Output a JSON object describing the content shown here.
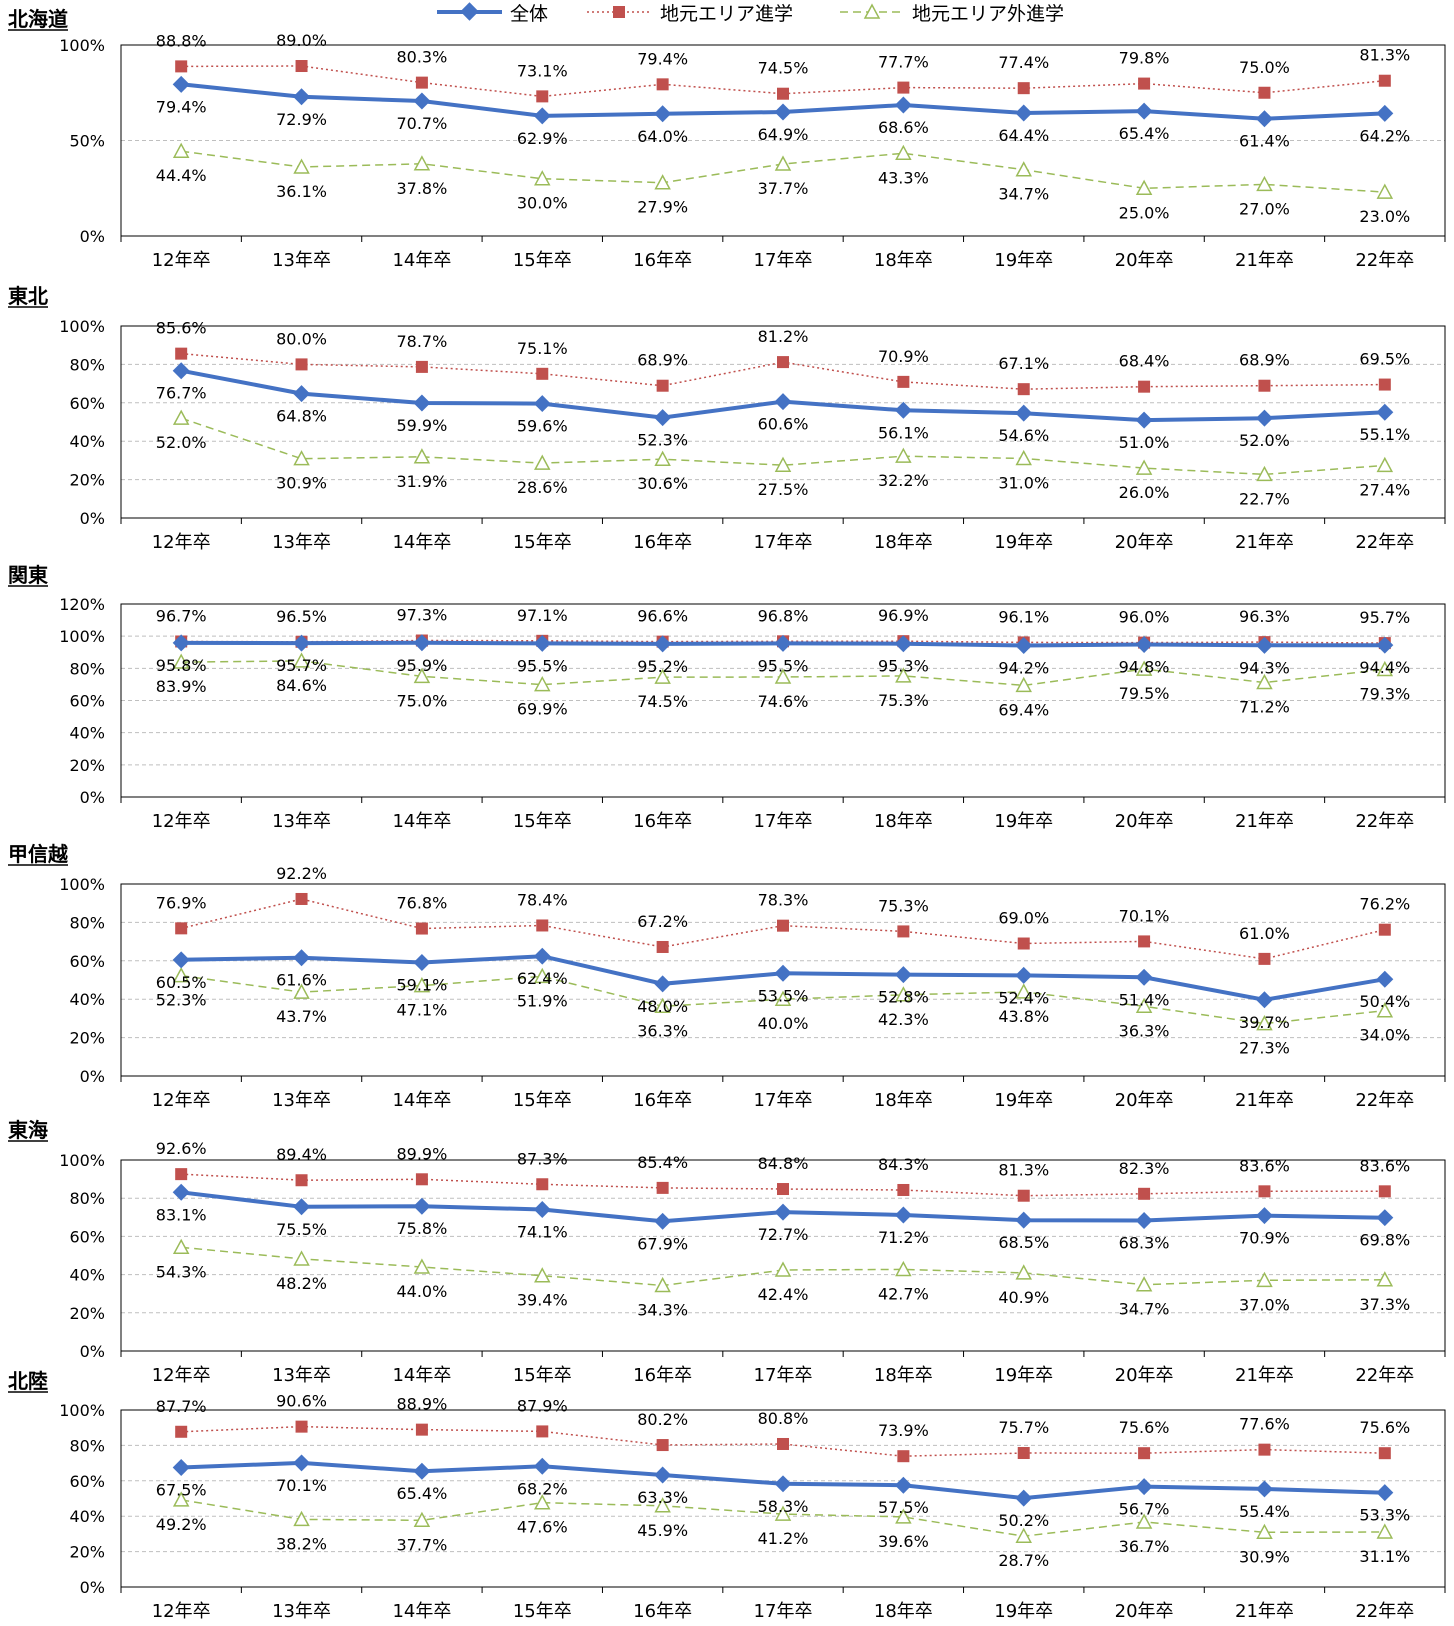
{
  "legend": {
    "total": "全体",
    "local": "地元エリア進学",
    "outside": "地元エリア外進学"
  },
  "colors": {
    "total": "#4472C4",
    "local": "#C0504D",
    "outside": "#9BBB59",
    "axis": "#000000",
    "grid": "#BFBFBF"
  },
  "chart_data": [
    {
      "type": "line",
      "title": "北海道",
      "x": [
        "12年卒",
        "13年卒",
        "14年卒",
        "15年卒",
        "16年卒",
        "17年卒",
        "18年卒",
        "19年卒",
        "20年卒",
        "21年卒",
        "22年卒"
      ],
      "yticks": [
        "0%",
        "50%",
        "100%"
      ],
      "ylim": [
        0,
        100
      ],
      "grid": true,
      "legend_position": "top",
      "series": [
        {
          "name": "全体",
          "values": [
            79.4,
            72.9,
            70.7,
            62.9,
            64.0,
            64.9,
            68.6,
            64.4,
            65.4,
            61.4,
            64.2
          ],
          "labels": [
            "79.4%",
            "72.9%",
            "70.7%",
            "62.9%",
            "64.0%",
            "64.9%",
            "68.6%",
            "64.4%",
            "65.4%",
            "61.4%",
            "64.2%"
          ]
        },
        {
          "name": "地元エリア進学",
          "values": [
            88.8,
            89.0,
            80.3,
            73.1,
            79.4,
            74.5,
            77.7,
            77.4,
            79.8,
            75.0,
            81.3
          ],
          "labels": [
            "88.8%",
            "89.0%",
            "80.3%",
            "73.1%",
            "79.4%",
            "74.5%",
            "77.7%",
            "77.4%",
            "79.8%",
            "75.0%",
            "81.3%"
          ]
        },
        {
          "name": "地元エリア外進学",
          "values": [
            44.4,
            36.1,
            37.8,
            30.0,
            27.9,
            37.7,
            43.3,
            34.7,
            25.0,
            27.0,
            23.0
          ],
          "labels": [
            "44.4%",
            "36.1%",
            "37.8%",
            "30.0%",
            "27.9%",
            "37.7%",
            "43.3%",
            "34.7%",
            "25.0%",
            "27.0%",
            "23.0%"
          ]
        }
      ]
    },
    {
      "type": "line",
      "title": "東北",
      "x": [
        "12年卒",
        "13年卒",
        "14年卒",
        "15年卒",
        "16年卒",
        "17年卒",
        "18年卒",
        "19年卒",
        "20年卒",
        "21年卒",
        "22年卒"
      ],
      "yticks": [
        "0%",
        "20%",
        "40%",
        "60%",
        "80%",
        "100%"
      ],
      "ylim": [
        0,
        100
      ],
      "grid": true,
      "series": [
        {
          "name": "全体",
          "values": [
            76.7,
            64.8,
            59.9,
            59.6,
            52.3,
            60.6,
            56.1,
            54.6,
            51.0,
            52.0,
            55.1
          ],
          "labels": [
            "76.7%",
            "64.8%",
            "59.9%",
            "59.6%",
            "52.3%",
            "60.6%",
            "56.1%",
            "54.6%",
            "51.0%",
            "52.0%",
            "55.1%"
          ]
        },
        {
          "name": "地元エリア進学",
          "values": [
            85.6,
            80.0,
            78.7,
            75.1,
            68.9,
            81.2,
            70.9,
            67.1,
            68.4,
            68.9,
            69.5
          ],
          "labels": [
            "85.6%",
            "80.0%",
            "78.7%",
            "75.1%",
            "68.9%",
            "81.2%",
            "70.9%",
            "67.1%",
            "68.4%",
            "68.9%",
            "69.5%"
          ]
        },
        {
          "name": "地元エリア外進学",
          "values": [
            52.0,
            30.9,
            31.9,
            28.6,
            30.6,
            27.5,
            32.2,
            31.0,
            26.0,
            22.7,
            27.4
          ],
          "labels": [
            "52.0%",
            "30.9%",
            "31.9%",
            "28.6%",
            "30.6%",
            "27.5%",
            "32.2%",
            "31.0%",
            "26.0%",
            "22.7%",
            "27.4%"
          ]
        }
      ]
    },
    {
      "type": "line",
      "title": "関東",
      "x": [
        "12年卒",
        "13年卒",
        "14年卒",
        "15年卒",
        "16年卒",
        "17年卒",
        "18年卒",
        "19年卒",
        "20年卒",
        "21年卒",
        "22年卒"
      ],
      "yticks": [
        "0%",
        "20%",
        "40%",
        "60%",
        "80%",
        "100%",
        "120%"
      ],
      "ylim": [
        0,
        120
      ],
      "grid": true,
      "series": [
        {
          "name": "全体",
          "values": [
            95.8,
            95.7,
            95.9,
            95.5,
            95.2,
            95.5,
            95.3,
            94.2,
            94.8,
            94.3,
            94.4
          ],
          "labels": [
            "95.8%",
            "95.7%",
            "95.9%",
            "95.5%",
            "95.2%",
            "95.5%",
            "95.3%",
            "94.2%",
            "94.8%",
            "94.3%",
            "94.4%"
          ]
        },
        {
          "name": "地元エリア進学",
          "values": [
            96.7,
            96.5,
            97.3,
            97.1,
            96.6,
            96.8,
            96.9,
            96.1,
            96.0,
            96.3,
            95.7
          ],
          "labels": [
            "96.7%",
            "96.5%",
            "97.3%",
            "97.1%",
            "96.6%",
            "96.8%",
            "96.9%",
            "96.1%",
            "96.0%",
            "96.3%",
            "95.7%"
          ]
        },
        {
          "name": "地元エリア外進学",
          "values": [
            83.9,
            84.6,
            75.0,
            69.9,
            74.5,
            74.6,
            75.3,
            69.4,
            79.5,
            71.2,
            79.3
          ],
          "labels": [
            "83.9%",
            "84.6%",
            "75.0%",
            "69.9%",
            "74.5%",
            "74.6%",
            "75.3%",
            "69.4%",
            "79.5%",
            "71.2%",
            "79.3%"
          ]
        }
      ]
    },
    {
      "type": "line",
      "title": "甲信越",
      "x": [
        "12年卒",
        "13年卒",
        "14年卒",
        "15年卒",
        "16年卒",
        "17年卒",
        "18年卒",
        "19年卒",
        "20年卒",
        "21年卒",
        "22年卒"
      ],
      "yticks": [
        "0%",
        "20%",
        "40%",
        "60%",
        "80%",
        "100%"
      ],
      "ylim": [
        0,
        100
      ],
      "grid": true,
      "series": [
        {
          "name": "全体",
          "values": [
            60.5,
            61.6,
            59.1,
            62.4,
            48.0,
            53.5,
            52.8,
            52.4,
            51.4,
            39.7,
            50.4
          ],
          "labels": [
            "60.5%",
            "61.6%",
            "59.1%",
            "62.4%",
            "48.0%",
            "53.5%",
            "52.8%",
            "52.4%",
            "51.4%",
            "39.7%",
            "50.4%"
          ]
        },
        {
          "name": "地元エリア進学",
          "values": [
            76.9,
            92.2,
            76.8,
            78.4,
            67.2,
            78.3,
            75.3,
            69.0,
            70.1,
            61.0,
            76.2
          ],
          "labels": [
            "76.9%",
            "92.2%",
            "76.8%",
            "78.4%",
            "67.2%",
            "78.3%",
            "75.3%",
            "69.0%",
            "70.1%",
            "61.0%",
            "76.2%"
          ]
        },
        {
          "name": "地元エリア外進学",
          "values": [
            52.3,
            43.7,
            47.1,
            51.9,
            36.3,
            40.0,
            42.3,
            43.8,
            36.3,
            27.3,
            34.0
          ],
          "labels": [
            "52.3%",
            "43.7%",
            "47.1%",
            "51.9%",
            "36.3%",
            "40.0%",
            "42.3%",
            "43.8%",
            "36.3%",
            "27.3%",
            "34.0%"
          ]
        }
      ]
    },
    {
      "type": "line",
      "title": "東海",
      "x": [
        "12年卒",
        "13年卒",
        "14年卒",
        "15年卒",
        "16年卒",
        "17年卒",
        "18年卒",
        "19年卒",
        "20年卒",
        "21年卒",
        "22年卒"
      ],
      "yticks": [
        "0%",
        "20%",
        "40%",
        "60%",
        "80%",
        "100%"
      ],
      "ylim": [
        0,
        100
      ],
      "grid": true,
      "series": [
        {
          "name": "全体",
          "values": [
            83.1,
            75.5,
            75.8,
            74.1,
            67.9,
            72.7,
            71.2,
            68.5,
            68.3,
            70.9,
            69.8
          ],
          "labels": [
            "83.1%",
            "75.5%",
            "75.8%",
            "74.1%",
            "67.9%",
            "72.7%",
            "71.2%",
            "68.5%",
            "68.3%",
            "70.9%",
            "69.8%"
          ]
        },
        {
          "name": "地元エリア進学",
          "values": [
            92.6,
            89.4,
            89.9,
            87.3,
            85.4,
            84.8,
            84.3,
            81.3,
            82.3,
            83.6,
            83.6
          ],
          "labels": [
            "92.6%",
            "89.4%",
            "89.9%",
            "87.3%",
            "85.4%",
            "84.8%",
            "84.3%",
            "81.3%",
            "82.3%",
            "83.6%",
            "83.6%"
          ]
        },
        {
          "name": "地元エリア外進学",
          "values": [
            54.3,
            48.2,
            44.0,
            39.4,
            34.3,
            42.4,
            42.7,
            40.9,
            34.7,
            37.0,
            37.3
          ],
          "labels": [
            "54.3%",
            "48.2%",
            "44.0%",
            "39.4%",
            "34.3%",
            "42.4%",
            "42.7%",
            "40.9%",
            "34.7%",
            "37.0%",
            "37.3%"
          ]
        }
      ]
    },
    {
      "type": "line",
      "title": "北陸",
      "x": [
        "12年卒",
        "13年卒",
        "14年卒",
        "15年卒",
        "16年卒",
        "17年卒",
        "18年卒",
        "19年卒",
        "20年卒",
        "21年卒",
        "22年卒"
      ],
      "yticks": [
        "0%",
        "20%",
        "40%",
        "60%",
        "80%",
        "100%"
      ],
      "ylim": [
        0,
        100
      ],
      "grid": true,
      "series": [
        {
          "name": "全体",
          "values": [
            67.5,
            70.1,
            65.4,
            68.2,
            63.3,
            58.3,
            57.5,
            50.2,
            56.7,
            55.4,
            53.3
          ],
          "labels": [
            "67.5%",
            "70.1%",
            "65.4%",
            "68.2%",
            "63.3%",
            "58.3%",
            "57.5%",
            "50.2%",
            "56.7%",
            "55.4%",
            "53.3%"
          ]
        },
        {
          "name": "地元エリア進学",
          "values": [
            87.7,
            90.6,
            88.9,
            87.9,
            80.2,
            80.8,
            73.9,
            75.7,
            75.6,
            77.6,
            75.6
          ],
          "labels": [
            "87.7%",
            "90.6%",
            "88.9%",
            "87.9%",
            "80.2%",
            "80.8%",
            "73.9%",
            "75.7%",
            "75.6%",
            "77.6%",
            "75.6%"
          ]
        },
        {
          "name": "地元エリア外進学",
          "values": [
            49.2,
            38.2,
            37.7,
            47.6,
            45.9,
            41.2,
            39.6,
            28.7,
            36.7,
            30.9,
            31.1
          ],
          "labels": [
            "49.2%",
            "38.2%",
            "37.7%",
            "47.6%",
            "45.9%",
            "41.2%",
            "39.6%",
            "28.7%",
            "36.7%",
            "30.9%",
            "31.1%"
          ]
        }
      ]
    }
  ]
}
